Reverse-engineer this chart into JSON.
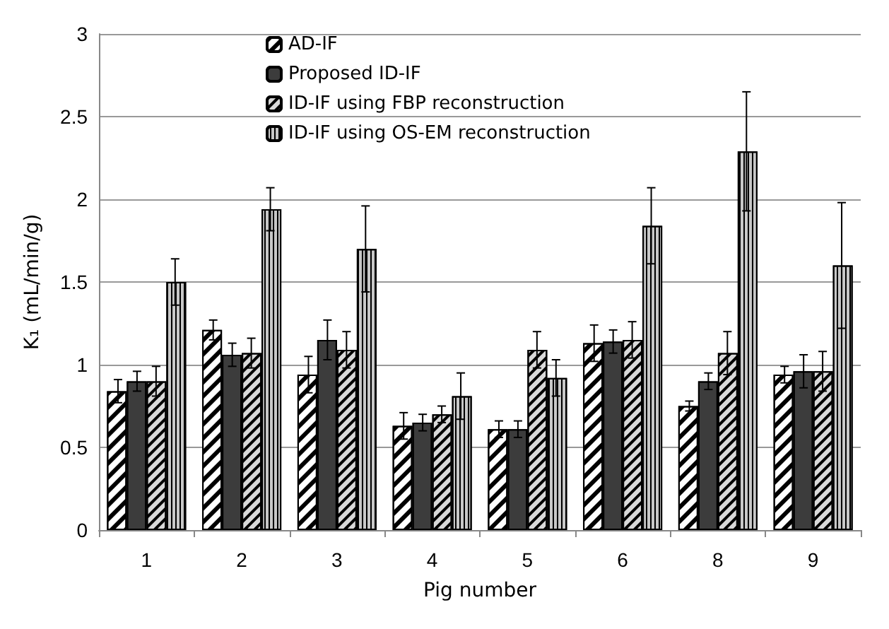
{
  "chart_data": {
    "type": "bar",
    "xlabel": "Pig number",
    "ylabel": "K₁ (mL/min/g)",
    "categories": [
      "1",
      "2",
      "3",
      "4",
      "5",
      "6",
      "8",
      "9"
    ],
    "series": [
      {
        "name": "AD-IF",
        "color": "#ffffff",
        "values": [
          0.84,
          1.21,
          0.94,
          0.63,
          0.61,
          1.13,
          0.75,
          0.94
        ],
        "errors": [
          0.07,
          0.06,
          0.11,
          0.08,
          0.05,
          0.11,
          0.03,
          0.05
        ]
      },
      {
        "name": "Proposed ID-IF",
        "color": "#3c3c3c",
        "values": [
          0.9,
          1.06,
          1.15,
          0.65,
          0.61,
          1.14,
          0.9,
          0.96
        ],
        "errors": [
          0.06,
          0.07,
          0.12,
          0.05,
          0.05,
          0.07,
          0.05,
          0.1
        ]
      },
      {
        "name": "ID-IF using FBP reconstruction",
        "color": "#d9d9d9",
        "values": [
          0.9,
          1.07,
          1.09,
          0.7,
          1.09,
          1.15,
          1.07,
          0.96
        ],
        "errors": [
          0.09,
          0.09,
          0.11,
          0.05,
          0.11,
          0.11,
          0.13,
          0.12
        ]
      },
      {
        "name": "ID-IF using OS-EM reconstruction",
        "color": "#c8c8c8",
        "values": [
          1.5,
          1.94,
          1.7,
          0.81,
          0.92,
          1.84,
          2.29,
          1.6
        ],
        "errors": [
          0.14,
          0.13,
          0.26,
          0.14,
          0.11,
          0.23,
          0.36,
          0.38
        ]
      }
    ],
    "ylim": [
      0,
      3
    ],
    "yticks": [
      0,
      0.5,
      1,
      1.5,
      2,
      2.5,
      3
    ],
    "grid": "y",
    "legend": "top"
  }
}
